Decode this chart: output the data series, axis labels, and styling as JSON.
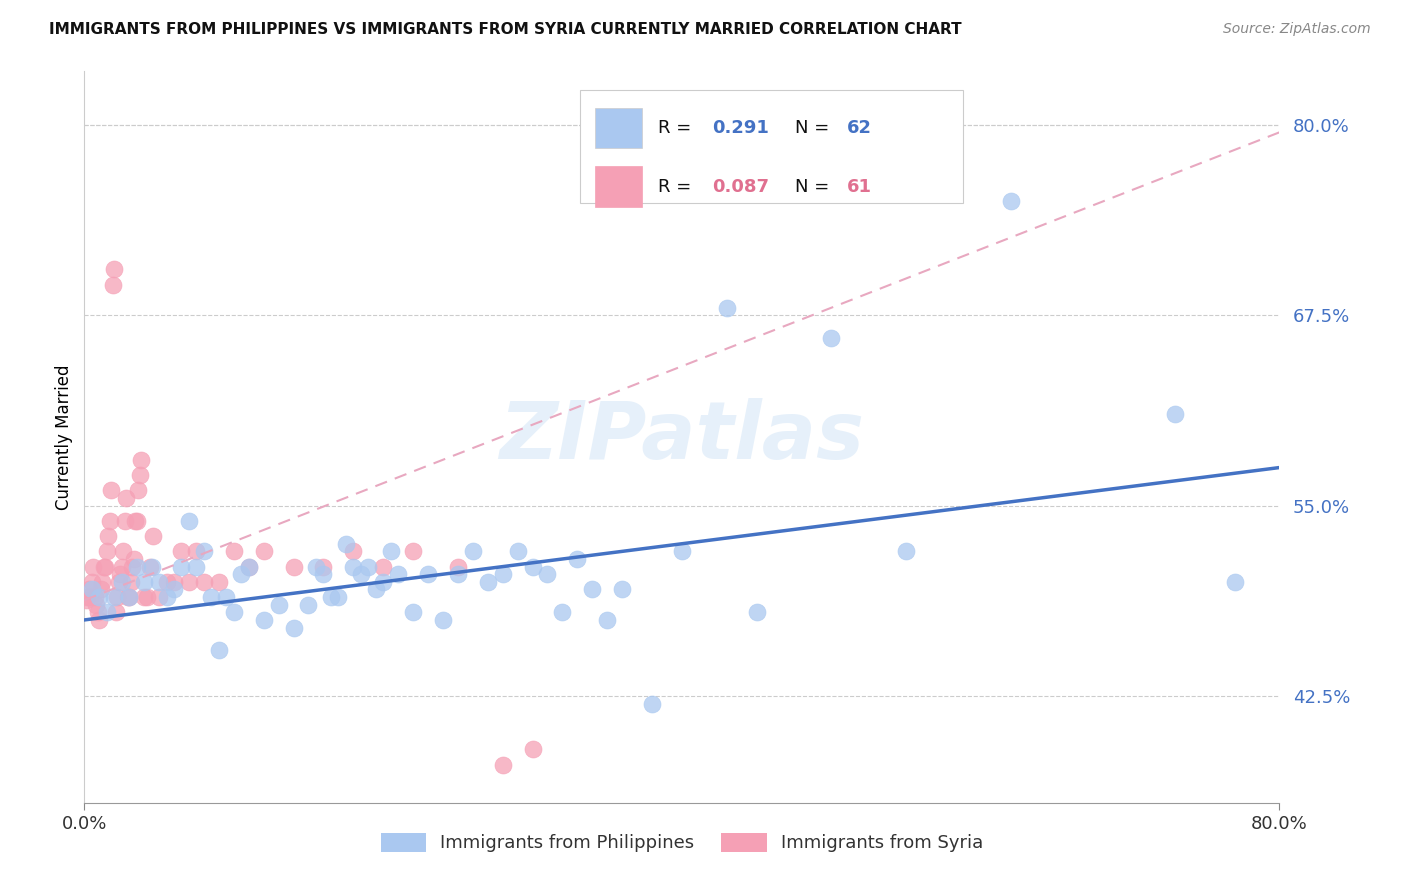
{
  "title": "IMMIGRANTS FROM PHILIPPINES VS IMMIGRANTS FROM SYRIA CURRENTLY MARRIED CORRELATION CHART",
  "source": "Source: ZipAtlas.com",
  "ylabel_label": "Currently Married",
  "ylabel_ticks": [
    42.5,
    55.0,
    67.5,
    80.0
  ],
  "xlim": [
    0.0,
    0.8
  ],
  "ylim": [
    0.355,
    0.835
  ],
  "watermark": "ZIPatlas",
  "philippines_color": "#aac8f0",
  "philippines_edge_color": "#aac8f0",
  "philippines_line_color": "#4472c4",
  "syria_color": "#f5a0b5",
  "syria_edge_color": "#f5a0b5",
  "syria_line_color": "#e07090",
  "syria_dash_color": "#e8a8c0",
  "philippines_x": [
    0.005,
    0.01,
    0.015,
    0.02,
    0.025,
    0.03,
    0.035,
    0.04,
    0.045,
    0.05,
    0.055,
    0.06,
    0.065,
    0.07,
    0.075,
    0.08,
    0.085,
    0.09,
    0.095,
    0.1,
    0.105,
    0.11,
    0.12,
    0.13,
    0.14,
    0.15,
    0.155,
    0.16,
    0.165,
    0.17,
    0.175,
    0.18,
    0.185,
    0.19,
    0.195,
    0.2,
    0.205,
    0.21,
    0.22,
    0.23,
    0.24,
    0.25,
    0.26,
    0.27,
    0.28,
    0.29,
    0.3,
    0.31,
    0.32,
    0.33,
    0.34,
    0.35,
    0.36,
    0.38,
    0.4,
    0.43,
    0.45,
    0.5,
    0.55,
    0.62,
    0.73,
    0.77
  ],
  "philippines_y": [
    0.495,
    0.49,
    0.48,
    0.49,
    0.5,
    0.49,
    0.51,
    0.5,
    0.51,
    0.5,
    0.49,
    0.495,
    0.51,
    0.54,
    0.51,
    0.52,
    0.49,
    0.455,
    0.49,
    0.48,
    0.505,
    0.51,
    0.475,
    0.485,
    0.47,
    0.485,
    0.51,
    0.505,
    0.49,
    0.49,
    0.525,
    0.51,
    0.505,
    0.51,
    0.495,
    0.5,
    0.52,
    0.505,
    0.48,
    0.505,
    0.475,
    0.505,
    0.52,
    0.5,
    0.505,
    0.52,
    0.51,
    0.505,
    0.48,
    0.515,
    0.495,
    0.475,
    0.495,
    0.42,
    0.52,
    0.68,
    0.48,
    0.66,
    0.52,
    0.75,
    0.61,
    0.5
  ],
  "syria_x": [
    0.001,
    0.002,
    0.003,
    0.004,
    0.005,
    0.006,
    0.007,
    0.008,
    0.009,
    0.01,
    0.011,
    0.012,
    0.013,
    0.014,
    0.015,
    0.016,
    0.017,
    0.018,
    0.019,
    0.02,
    0.021,
    0.022,
    0.023,
    0.024,
    0.025,
    0.026,
    0.027,
    0.028,
    0.029,
    0.03,
    0.031,
    0.032,
    0.033,
    0.034,
    0.035,
    0.036,
    0.037,
    0.038,
    0.04,
    0.042,
    0.044,
    0.046,
    0.05,
    0.055,
    0.06,
    0.065,
    0.07,
    0.075,
    0.08,
    0.09,
    0.1,
    0.11,
    0.12,
    0.14,
    0.16,
    0.18,
    0.2,
    0.22,
    0.25,
    0.28,
    0.3
  ],
  "syria_y": [
    0.488,
    0.49,
    0.495,
    0.49,
    0.5,
    0.51,
    0.49,
    0.485,
    0.48,
    0.475,
    0.495,
    0.5,
    0.51,
    0.51,
    0.52,
    0.53,
    0.54,
    0.56,
    0.695,
    0.705,
    0.48,
    0.49,
    0.5,
    0.505,
    0.51,
    0.52,
    0.54,
    0.555,
    0.49,
    0.49,
    0.5,
    0.51,
    0.515,
    0.54,
    0.54,
    0.56,
    0.57,
    0.58,
    0.49,
    0.49,
    0.51,
    0.53,
    0.49,
    0.5,
    0.5,
    0.52,
    0.5,
    0.52,
    0.5,
    0.5,
    0.52,
    0.51,
    0.52,
    0.51,
    0.51,
    0.52,
    0.51,
    0.52,
    0.51,
    0.38,
    0.39
  ],
  "phi_trend_x": [
    0.0,
    0.8
  ],
  "phi_trend_y": [
    0.475,
    0.575
  ],
  "syr_trend_x": [
    0.0,
    0.8
  ],
  "syr_trend_y": [
    0.488,
    0.795
  ]
}
